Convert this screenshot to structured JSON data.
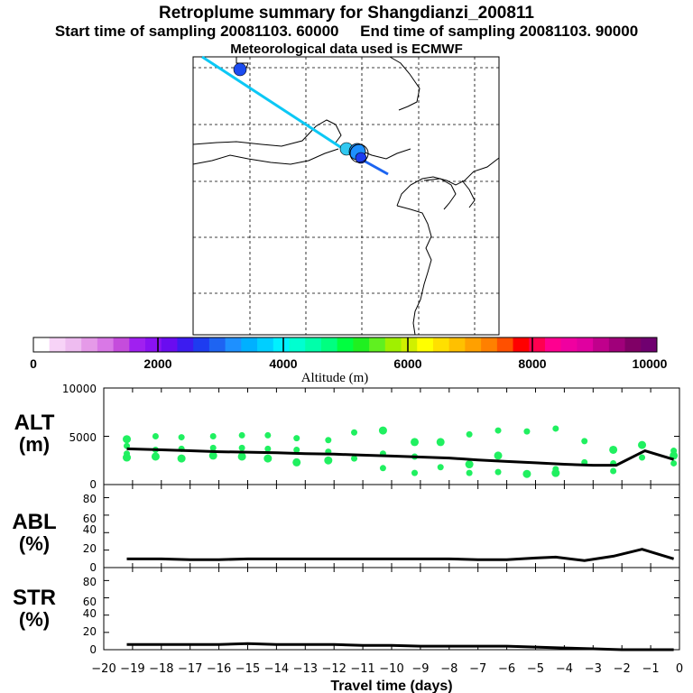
{
  "header": {
    "title": "Retroplume summary for Shangdianzi_200811",
    "sampling_line": "Start time of sampling 20081103. 60000     End time of sampling 20081103. 90000",
    "met_line": "Meteorological data used is ECMWF"
  },
  "colorbar": {
    "label": "Altitude (m)",
    "ticks": [
      "0",
      "2000",
      "4000",
      "6000",
      "8000",
      "10000"
    ],
    "colors": [
      "#ffffff",
      "#f7d3f7",
      "#eebcf0",
      "#e59ae8",
      "#d978e6",
      "#c54cdc",
      "#a020f0",
      "#8a12f2",
      "#6a0cf0",
      "#3c1cf0",
      "#1e3cf0",
      "#1e64f2",
      "#1e90ff",
      "#00b0ff",
      "#00cfff",
      "#00f0ff",
      "#00ffd0",
      "#00ffaa",
      "#00ff80",
      "#00ff40",
      "#20f020",
      "#60f020",
      "#a0f000",
      "#d0f000",
      "#ffff00",
      "#ffe000",
      "#ffc000",
      "#ffa000",
      "#ff8000",
      "#ff5000",
      "#ff0000",
      "#ff0050",
      "#ff0090",
      "#f000a0",
      "#e000a0",
      "#c0008c",
      "#a0007a",
      "#800066",
      "#700070"
    ]
  },
  "panels": {
    "alt": {
      "label_top": "ALT",
      "label_bottom": "(m)",
      "ticks": [
        "10000",
        "5000",
        "0"
      ]
    },
    "abl": {
      "label_top": "ABL",
      "label_bottom": "(%)",
      "ticks": [
        "80",
        "60",
        "40",
        "20",
        "0"
      ]
    },
    "str": {
      "label_top": "STR",
      "label_bottom": "(%)",
      "ticks": [
        "80",
        "60",
        "40",
        "20",
        "0"
      ]
    }
  },
  "xaxis": {
    "label": "Travel time (days)",
    "ticks": [
      "−20",
      "−19",
      "−18",
      "−17",
      "−16",
      "−15",
      "−14",
      "−13",
      "−12",
      "−11",
      "−10",
      "−9",
      "−8",
      "−7",
      "−6",
      "−5",
      "−4",
      "−3",
      "−2",
      "−1",
      "0"
    ]
  },
  "chart_data": [
    {
      "type": "line",
      "title": "ALT",
      "xlabel": "Travel time (days)",
      "ylabel": "ALT (m)",
      "xlim": [
        -20,
        0
      ],
      "ylim": [
        0,
        10000
      ],
      "x": [
        -19.2,
        -18,
        -17,
        -16,
        -15,
        -14,
        -13,
        -12,
        -11,
        -10,
        -9,
        -8,
        -7,
        -6,
        -5,
        -4,
        -3,
        -2.2,
        -1.2,
        -0.2
      ],
      "values": [
        3700,
        3600,
        3500,
        3400,
        3350,
        3300,
        3200,
        3150,
        3050,
        2950,
        2850,
        2750,
        2550,
        2400,
        2250,
        2100,
        2000,
        2000,
        3500,
        2600
      ]
    },
    {
      "type": "scatter",
      "title": "ALT particles",
      "x": [
        -19.2,
        -19.2,
        -19.2,
        -19.2,
        -18.2,
        -18.2,
        -18.2,
        -17.3,
        -17.3,
        -17.3,
        -16.2,
        -16.2,
        -16.2,
        -15.2,
        -15.2,
        -15.2,
        -14.3,
        -14.3,
        -14.3,
        -13.3,
        -13.3,
        -13.3,
        -12.2,
        -12.2,
        -12.2,
        -11.3,
        -11.3,
        -10.3,
        -10.3,
        -10.3,
        -9.2,
        -9.2,
        -9.2,
        -8.3,
        -8.3,
        -7.3,
        -7.3,
        -7.3,
        -6.3,
        -6.3,
        -6.3,
        -5.3,
        -5.3,
        -4.3,
        -4.3,
        -4.3,
        -3.3,
        -3.3,
        -2.3,
        -2.3,
        -2.3,
        -1.3,
        -1.3,
        -0.2,
        -0.2,
        -0.2
      ],
      "values": [
        4700,
        4000,
        3200,
        2800,
        5000,
        3600,
        2900,
        4900,
        3700,
        2700,
        5000,
        3800,
        3000,
        5100,
        3800,
        2900,
        5100,
        3700,
        2700,
        4800,
        3600,
        2300,
        4600,
        3400,
        2500,
        5400,
        2700,
        5600,
        3200,
        1700,
        4400,
        2900,
        1200,
        4400,
        1800,
        5200,
        2100,
        1200,
        5600,
        3000,
        1300,
        5500,
        1100,
        5800,
        1600,
        1200,
        4500,
        2300,
        3600,
        2200,
        1400,
        4100,
        2800,
        3500,
        3000,
        2200
      ]
    },
    {
      "type": "line",
      "title": "ABL",
      "xlabel": "Travel time (days)",
      "ylabel": "ABL (%)",
      "xlim": [
        -20,
        0
      ],
      "ylim": [
        0,
        95
      ],
      "x": [
        -19.2,
        -18,
        -17,
        -16,
        -15,
        -14,
        -13,
        -12,
        -11,
        -10,
        -9,
        -8,
        -7,
        -6,
        -5,
        -4.3,
        -3.3,
        -2.3,
        -1.3,
        -0.2
      ],
      "values": [
        10,
        10,
        9,
        9,
        10,
        10,
        10,
        10,
        10,
        10,
        10,
        10,
        9,
        9,
        11,
        12,
        8,
        13,
        21,
        10
      ]
    },
    {
      "type": "line",
      "title": "STR",
      "xlabel": "Travel time (days)",
      "ylabel": "STR (%)",
      "xlim": [
        -20,
        0
      ],
      "ylim": [
        0,
        95
      ],
      "x": [
        -19.2,
        -18,
        -17,
        -16,
        -15,
        -14,
        -13,
        -12,
        -11,
        -10,
        -9,
        -8,
        -7,
        -6,
        -5,
        -4,
        -3,
        -2,
        -1,
        -0.2
      ],
      "values": [
        6,
        6,
        6,
        6,
        7,
        6,
        6,
        6,
        5,
        5,
        4,
        4,
        4,
        4,
        3,
        2,
        1,
        0,
        0,
        0
      ]
    }
  ]
}
